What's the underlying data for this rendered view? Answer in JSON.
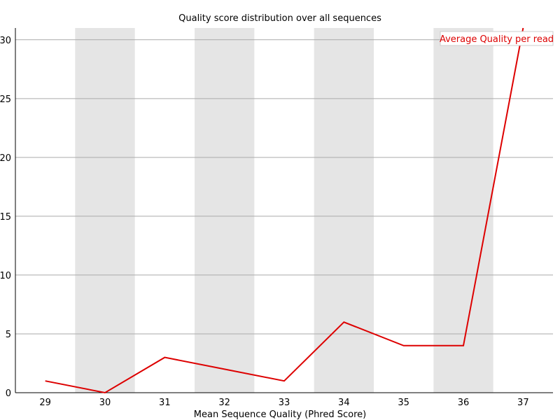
{
  "chart_data": {
    "type": "line",
    "title": "Quality score distribution over all sequences",
    "xlabel": "Mean Sequence Quality (Phred Score)",
    "ylabel": "",
    "x": [
      29,
      30,
      31,
      32,
      33,
      34,
      35,
      36,
      37
    ],
    "series": [
      {
        "name": "Average Quality per read",
        "values": [
          1,
          0,
          3,
          2,
          1,
          6,
          4,
          4,
          31
        ],
        "color": "#dd0000"
      }
    ],
    "xlim": [
      28.5,
      37.5
    ],
    "ylim": [
      0,
      31
    ],
    "yticks": [
      0,
      5,
      10,
      15,
      20,
      25,
      30
    ],
    "grid": true,
    "alternating_bands": true,
    "band_color": "#e5e5e5",
    "legend_position": "top-right"
  }
}
